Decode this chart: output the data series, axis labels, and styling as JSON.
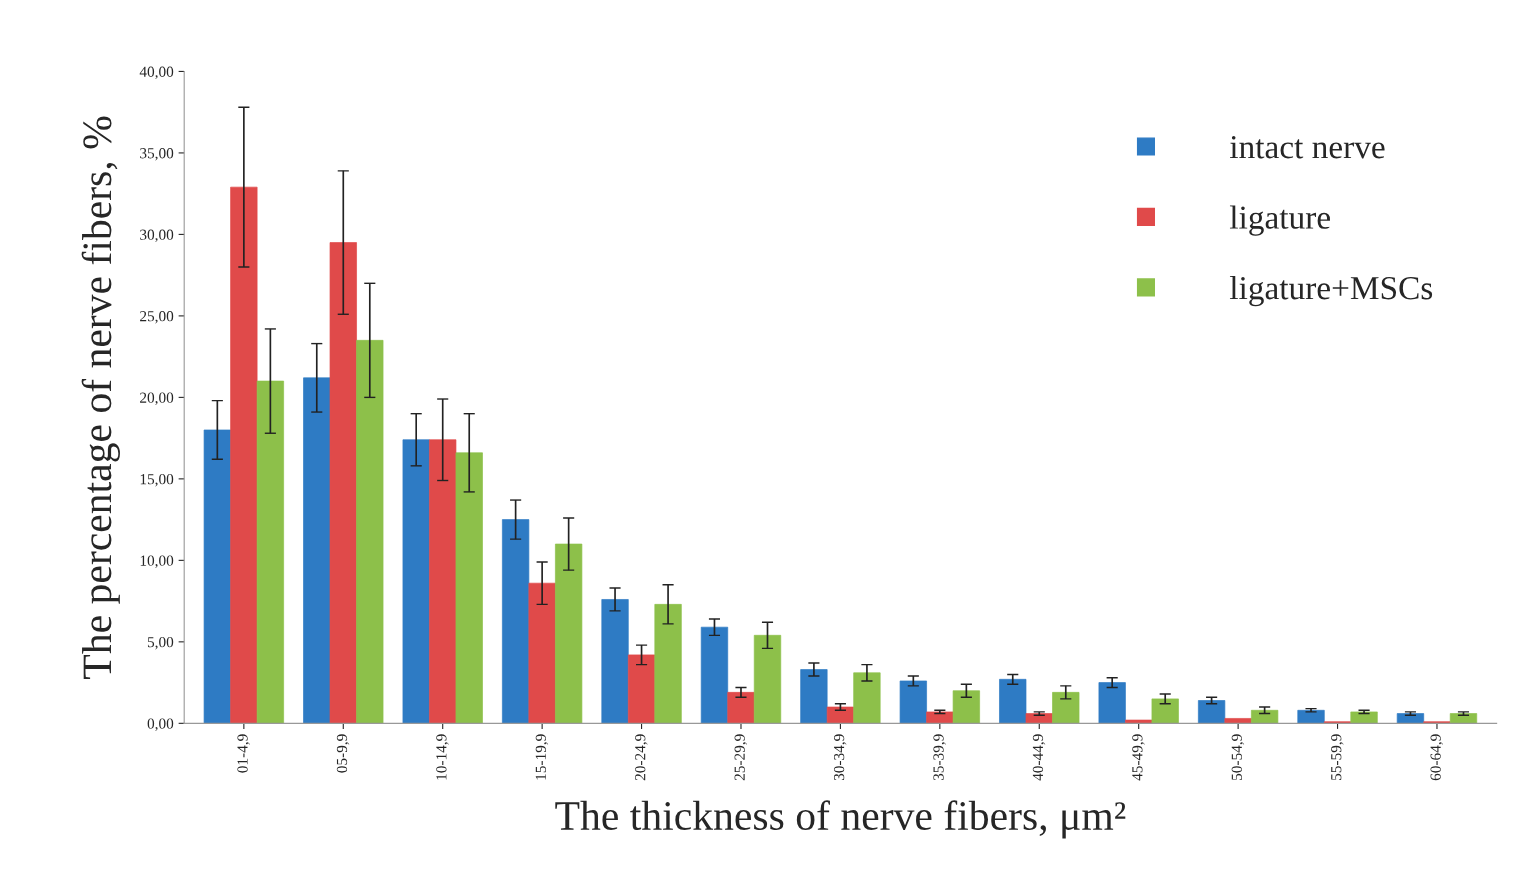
{
  "chart_data": {
    "type": "bar",
    "xlabel": "The thickness of nerve fibers, μm²",
    "ylabel": "The percentage of nerve fibers, %",
    "categories": [
      "01-4,9",
      "05-9,9",
      "10-14,9",
      "15-19,9",
      "20-24,9",
      "25-29,9",
      "30-34,9",
      "35-39,9",
      "40-44,9",
      "45-49,9",
      "50-54,9",
      "55-59,9",
      "60-64,9"
    ],
    "series": [
      {
        "name": "intact nerve",
        "color": "#2e7bc4",
        "values": [
          18.0,
          21.2,
          17.4,
          12.5,
          7.6,
          5.9,
          3.3,
          2.6,
          2.7,
          2.5,
          1.4,
          0.8,
          0.6
        ],
        "errors": [
          1.8,
          2.1,
          1.6,
          1.2,
          0.7,
          0.5,
          0.4,
          0.3,
          0.3,
          0.3,
          0.2,
          0.1,
          0.1
        ]
      },
      {
        "name": "ligature",
        "color": "#e04a4a",
        "values": [
          32.9,
          29.5,
          17.4,
          8.6,
          4.2,
          1.9,
          1.0,
          0.7,
          0.6,
          0.2,
          0.3,
          0.1,
          0.1
        ],
        "errors": [
          4.9,
          4.4,
          2.5,
          1.3,
          0.6,
          0.3,
          0.2,
          0.1,
          0.1,
          null,
          null,
          null,
          null
        ]
      },
      {
        "name": "ligature+MSCs",
        "color": "#8dc04a",
        "values": [
          21.0,
          23.5,
          16.6,
          11.0,
          7.3,
          5.4,
          3.1,
          2.0,
          1.9,
          1.5,
          0.8,
          0.7,
          0.6
        ],
        "errors": [
          3.2,
          3.5,
          2.4,
          1.6,
          1.2,
          0.8,
          0.5,
          0.4,
          0.4,
          0.3,
          0.2,
          0.1,
          0.1
        ]
      }
    ],
    "ylim": [
      0,
      40
    ],
    "yticks": [
      {
        "value": 0,
        "label": "0,00"
      },
      {
        "value": 5,
        "label": "5,00"
      },
      {
        "value": 10,
        "label": "10,00"
      },
      {
        "value": 15,
        "label": "15,00"
      },
      {
        "value": 20,
        "label": "20,00"
      },
      {
        "value": 25,
        "label": "25,00"
      },
      {
        "value": 30,
        "label": "30,00"
      },
      {
        "value": 35,
        "label": "35,00"
      },
      {
        "value": 40,
        "label": "40,00"
      }
    ],
    "grid": false,
    "legend": "top right"
  }
}
